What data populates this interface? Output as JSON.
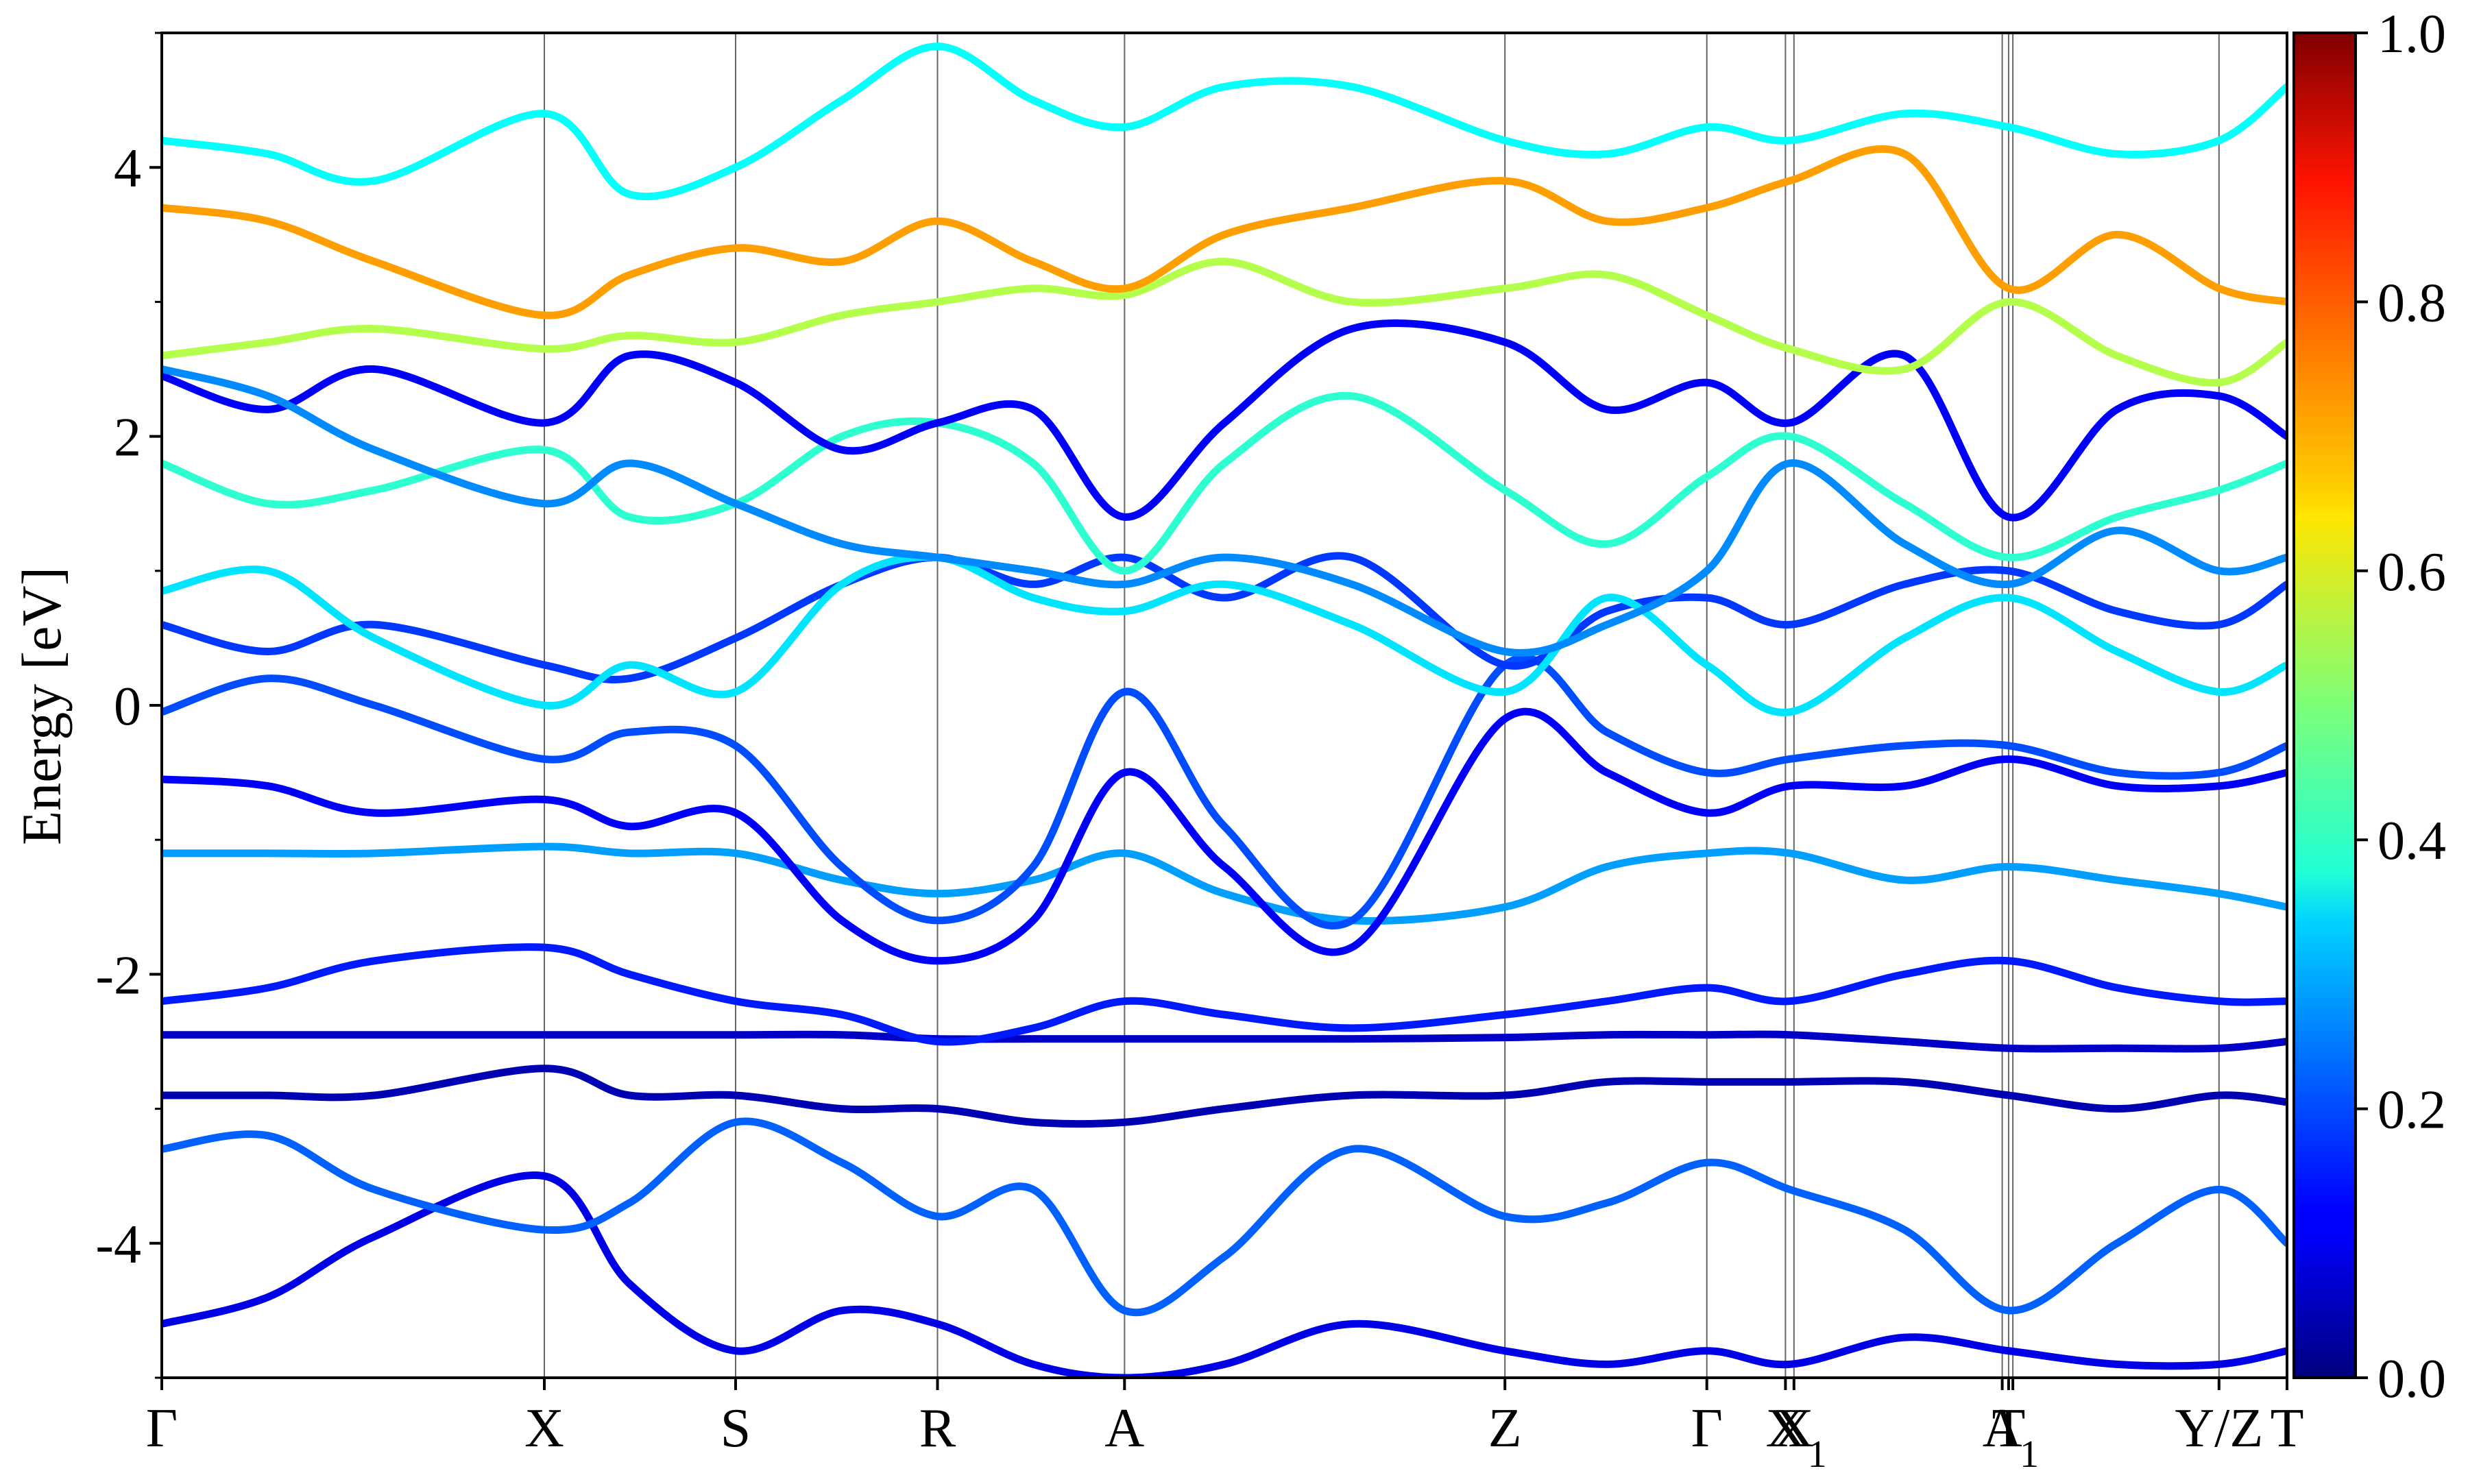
{
  "chart_data": {
    "type": "line",
    "title": "",
    "ylabel": "Energy [eV]",
    "ylim": [
      -5,
      5
    ],
    "y_ticks": [
      {
        "value": 4,
        "label": "4"
      },
      {
        "value": 2,
        "label": "2"
      },
      {
        "value": 0,
        "label": "0"
      },
      {
        "value": -2,
        "label": "-2"
      },
      {
        "value": -4,
        "label": "-4"
      }
    ],
    "x_ticks": [
      {
        "value": 0.0,
        "label": "Γ",
        "sub": ""
      },
      {
        "value": 0.18,
        "label": "X",
        "sub": ""
      },
      {
        "value": 0.27,
        "label": "S",
        "sub": ""
      },
      {
        "value": 0.365,
        "label": "R",
        "sub": ""
      },
      {
        "value": 0.453,
        "label": "A",
        "sub": ""
      },
      {
        "value": 0.632,
        "label": "Z",
        "sub": ""
      },
      {
        "value": 0.727,
        "label": "Γ",
        "sub": ""
      },
      {
        "value": 0.764,
        "label": "X",
        "sub": ""
      },
      {
        "value": 0.768,
        "label": "X",
        "sub": "1"
      },
      {
        "value": 0.866,
        "label": "A",
        "sub": ""
      },
      {
        "value": 0.869,
        "label": "T",
        "sub": ""
      },
      {
        "value": 0.871,
        "label": "",
        "sub": "1"
      },
      {
        "value": 0.968,
        "label": "Y/Z",
        "sub": ""
      },
      {
        "value": 1.0,
        "label": "T",
        "sub": ""
      }
    ],
    "colorbar": {
      "colormap": "jet",
      "range": [
        0.0,
        1.0
      ],
      "ticks": [
        {
          "value": 1.0,
          "label": "1.0"
        },
        {
          "value": 0.8,
          "label": "0.8"
        },
        {
          "value": 0.6,
          "label": "0.6"
        },
        {
          "value": 0.4,
          "label": "0.4"
        },
        {
          "value": 0.2,
          "label": "0.2"
        },
        {
          "value": 0.0,
          "label": "0.0"
        }
      ]
    },
    "grid": "vertical lines at high-symmetry points",
    "bands": [
      {
        "x": [
          0,
          0.05,
          0.1,
          0.18,
          0.22,
          0.27,
          0.32,
          0.365,
          0.41,
          0.453,
          0.5,
          0.56,
          0.632,
          0.68,
          0.727,
          0.766,
          0.82,
          0.869,
          0.92,
          0.968,
          1.0
        ],
        "y": [
          -4.6,
          -4.4,
          -3.95,
          -3.5,
          -4.3,
          -4.8,
          -4.5,
          -4.6,
          -4.9,
          -5.0,
          -4.9,
          -4.6,
          -4.8,
          -4.9,
          -4.8,
          -4.9,
          -4.7,
          -4.8,
          -4.9,
          -4.9,
          -4.8
        ],
        "weight": 0.1
      },
      {
        "x": [
          0,
          0.05,
          0.1,
          0.18,
          0.22,
          0.27,
          0.32,
          0.365,
          0.41,
          0.453,
          0.5,
          0.56,
          0.632,
          0.68,
          0.727,
          0.766,
          0.82,
          0.869,
          0.92,
          0.968,
          1.0
        ],
        "y": [
          -3.3,
          -3.2,
          -3.6,
          -3.9,
          -3.7,
          -3.1,
          -3.4,
          -3.8,
          -3.6,
          -4.5,
          -4.1,
          -3.3,
          -3.8,
          -3.7,
          -3.4,
          -3.6,
          -3.9,
          -4.5,
          -4.0,
          -3.6,
          -4.0
        ],
        "weight": 0.22
      },
      {
        "x": [
          0,
          0.05,
          0.1,
          0.18,
          0.22,
          0.27,
          0.32,
          0.365,
          0.41,
          0.453,
          0.5,
          0.56,
          0.632,
          0.68,
          0.727,
          0.766,
          0.82,
          0.869,
          0.92,
          0.968,
          1.0
        ],
        "y": [
          -2.9,
          -2.9,
          -2.9,
          -2.7,
          -2.9,
          -2.9,
          -3.0,
          -3.0,
          -3.1,
          -3.1,
          -3.0,
          -2.9,
          -2.9,
          -2.8,
          -2.8,
          -2.8,
          -2.8,
          -2.9,
          -3.0,
          -2.9,
          -2.95
        ],
        "weight": 0.05
      },
      {
        "x": [
          0,
          0.05,
          0.1,
          0.18,
          0.22,
          0.27,
          0.32,
          0.365,
          0.41,
          0.453,
          0.5,
          0.56,
          0.632,
          0.68,
          0.727,
          0.766,
          0.82,
          0.869,
          0.92,
          0.968,
          1.0
        ],
        "y": [
          -2.45,
          -2.45,
          -2.45,
          -2.45,
          -2.45,
          -2.45,
          -2.45,
          -2.48,
          -2.48,
          -2.48,
          -2.48,
          -2.48,
          -2.47,
          -2.45,
          -2.45,
          -2.45,
          -2.5,
          -2.55,
          -2.55,
          -2.55,
          -2.5
        ],
        "weight": 0.07
      },
      {
        "x": [
          0,
          0.05,
          0.1,
          0.18,
          0.22,
          0.27,
          0.32,
          0.365,
          0.41,
          0.453,
          0.5,
          0.56,
          0.632,
          0.68,
          0.727,
          0.766,
          0.82,
          0.869,
          0.92,
          0.968,
          1.0
        ],
        "y": [
          -2.2,
          -2.1,
          -1.9,
          -1.8,
          -2.0,
          -2.2,
          -2.3,
          -2.5,
          -2.4,
          -2.2,
          -2.3,
          -2.4,
          -2.3,
          -2.2,
          -2.1,
          -2.2,
          -2.0,
          -1.9,
          -2.1,
          -2.2,
          -2.2
        ],
        "weight": 0.15
      },
      {
        "x": [
          0,
          0.05,
          0.1,
          0.18,
          0.22,
          0.27,
          0.32,
          0.365,
          0.41,
          0.453,
          0.5,
          0.56,
          0.632,
          0.68,
          0.727,
          0.766,
          0.82,
          0.869,
          0.92,
          0.968,
          1.0
        ],
        "y": [
          -1.1,
          -1.1,
          -1.1,
          -1.05,
          -1.1,
          -1.1,
          -1.3,
          -1.4,
          -1.3,
          -1.1,
          -1.4,
          -1.6,
          -1.5,
          -1.2,
          -1.1,
          -1.1,
          -1.3,
          -1.2,
          -1.3,
          -1.4,
          -1.5
        ],
        "weight": 0.28
      },
      {
        "x": [
          0,
          0.05,
          0.1,
          0.18,
          0.22,
          0.27,
          0.32,
          0.365,
          0.41,
          0.453,
          0.5,
          0.56,
          0.632,
          0.68,
          0.727,
          0.766,
          0.82,
          0.869,
          0.92,
          0.968,
          1.0
        ],
        "y": [
          -0.55,
          -0.6,
          -0.8,
          -0.7,
          -0.9,
          -0.8,
          -1.6,
          -1.9,
          -1.6,
          -0.5,
          -1.2,
          -1.8,
          -0.1,
          -0.5,
          -0.8,
          -0.6,
          -0.6,
          -0.4,
          -0.6,
          -0.6,
          -0.5
        ],
        "weight": 0.12
      },
      {
        "x": [
          0,
          0.05,
          0.1,
          0.18,
          0.22,
          0.27,
          0.32,
          0.365,
          0.41,
          0.453,
          0.5,
          0.56,
          0.632,
          0.68,
          0.727,
          0.766,
          0.82,
          0.869,
          0.92,
          0.968,
          1.0
        ],
        "y": [
          -0.05,
          0.2,
          0.0,
          -0.4,
          -0.2,
          -0.3,
          -1.2,
          -1.6,
          -1.2,
          0.1,
          -0.9,
          -1.6,
          0.3,
          -0.2,
          -0.5,
          -0.4,
          -0.3,
          -0.3,
          -0.5,
          -0.5,
          -0.3
        ],
        "weight": 0.2
      },
      {
        "x": [
          0,
          0.05,
          0.1,
          0.18,
          0.22,
          0.27,
          0.32,
          0.365,
          0.41,
          0.453,
          0.5,
          0.56,
          0.632,
          0.68,
          0.727,
          0.766,
          0.82,
          0.869,
          0.92,
          0.968,
          1.0
        ],
        "y": [
          0.6,
          0.4,
          0.6,
          0.3,
          0.2,
          0.5,
          0.9,
          1.1,
          0.9,
          1.1,
          0.8,
          1.1,
          0.3,
          0.7,
          0.8,
          0.6,
          0.9,
          1.0,
          0.7,
          0.6,
          0.9
        ],
        "weight": 0.18
      },
      {
        "x": [
          0,
          0.05,
          0.1,
          0.18,
          0.22,
          0.27,
          0.32,
          0.365,
          0.41,
          0.453,
          0.5,
          0.56,
          0.632,
          0.68,
          0.727,
          0.766,
          0.82,
          0.869,
          0.92,
          0.968,
          1.0
        ],
        "y": [
          0.85,
          1.0,
          0.5,
          0.0,
          0.3,
          0.1,
          0.9,
          1.1,
          0.8,
          0.7,
          0.9,
          0.6,
          0.1,
          0.8,
          0.3,
          -0.05,
          0.5,
          0.8,
          0.4,
          0.1,
          0.3
        ],
        "weight": 0.35
      },
      {
        "x": [
          0,
          0.05,
          0.1,
          0.18,
          0.22,
          0.27,
          0.32,
          0.365,
          0.41,
          0.453,
          0.5,
          0.56,
          0.632,
          0.68,
          0.727,
          0.766,
          0.82,
          0.869,
          0.92,
          0.968,
          1.0
        ],
        "y": [
          1.8,
          1.5,
          1.6,
          1.9,
          1.4,
          1.5,
          2.0,
          2.1,
          1.8,
          1.0,
          1.8,
          2.3,
          1.6,
          1.2,
          1.7,
          2.0,
          1.5,
          1.1,
          1.4,
          1.6,
          1.8
        ],
        "weight": 0.42
      },
      {
        "x": [
          0,
          0.05,
          0.1,
          0.18,
          0.22,
          0.27,
          0.32,
          0.365,
          0.41,
          0.453,
          0.5,
          0.56,
          0.632,
          0.68,
          0.727,
          0.766,
          0.82,
          0.869,
          0.92,
          0.968,
          1.0
        ],
        "y": [
          2.45,
          2.2,
          2.5,
          2.1,
          2.6,
          2.4,
          1.9,
          2.1,
          2.2,
          1.4,
          2.1,
          2.8,
          2.7,
          2.2,
          2.4,
          2.1,
          2.6,
          1.4,
          2.2,
          2.3,
          2.0
        ],
        "weight": 0.12
      },
      {
        "x": [
          0,
          0.05,
          0.1,
          0.18,
          0.22,
          0.27,
          0.32,
          0.365,
          0.41,
          0.453,
          0.5,
          0.56,
          0.632,
          0.68,
          0.727,
          0.766,
          0.82,
          0.869,
          0.92,
          0.968,
          1.0
        ],
        "y": [
          2.6,
          2.7,
          2.8,
          2.65,
          2.75,
          2.7,
          2.9,
          3.0,
          3.1,
          3.05,
          3.3,
          3.0,
          3.1,
          3.2,
          2.9,
          2.65,
          2.5,
          3.0,
          2.6,
          2.4,
          2.7
        ],
        "weight": 0.55
      },
      {
        "x": [
          0,
          0.05,
          0.1,
          0.18,
          0.22,
          0.27,
          0.32,
          0.365,
          0.41,
          0.453,
          0.5,
          0.56,
          0.632,
          0.68,
          0.727,
          0.766,
          0.82,
          0.869,
          0.92,
          0.968,
          1.0
        ],
        "y": [
          3.7,
          3.6,
          3.3,
          2.9,
          3.2,
          3.4,
          3.3,
          3.6,
          3.3,
          3.1,
          3.5,
          3.7,
          3.9,
          3.6,
          3.7,
          3.9,
          4.1,
          3.1,
          3.5,
          3.1,
          3.0
        ],
        "weight": 0.72
      },
      {
        "x": [
          0,
          0.05,
          0.1,
          0.18,
          0.22,
          0.27,
          0.32,
          0.365,
          0.41,
          0.453,
          0.5,
          0.56,
          0.632,
          0.68,
          0.727,
          0.766,
          0.82,
          0.869,
          0.92,
          0.968,
          1.0
        ],
        "y": [
          4.2,
          4.1,
          3.9,
          4.4,
          3.8,
          4.0,
          4.5,
          4.9,
          4.5,
          4.3,
          4.6,
          4.6,
          4.2,
          4.1,
          4.3,
          4.2,
          4.4,
          4.3,
          4.1,
          4.2,
          4.6
        ],
        "weight": 0.38
      },
      {
        "x": [
          0,
          0.05,
          0.1,
          0.18,
          0.22,
          0.27,
          0.32,
          0.365,
          0.41,
          0.453,
          0.5,
          0.56,
          0.632,
          0.68,
          0.727,
          0.766,
          0.82,
          0.869,
          0.92,
          0.968,
          1.0
        ],
        "y": [
          2.5,
          2.3,
          1.9,
          1.5,
          1.8,
          1.5,
          1.2,
          1.1,
          1.0,
          0.9,
          1.1,
          0.9,
          0.4,
          0.6,
          1.0,
          1.8,
          1.2,
          0.9,
          1.3,
          1.0,
          1.1
        ],
        "weight": 0.26
      }
    ]
  }
}
